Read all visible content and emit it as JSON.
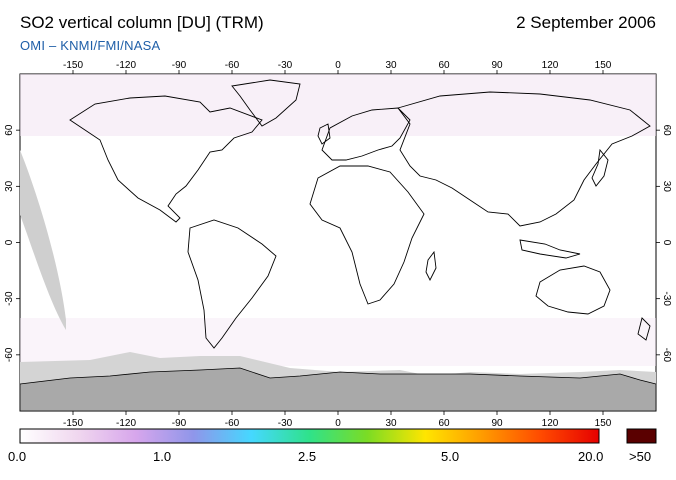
{
  "header": {
    "title": "SO2 vertical column [DU] (TRM)",
    "date": "2 September 2006",
    "credit": "OMI  –  KNMI/FMI/NASA"
  },
  "map": {
    "lon_ticks": [
      "-150",
      "-120",
      "-90",
      "-60",
      "-30",
      "0",
      "30",
      "60",
      "90",
      "120",
      "150"
    ],
    "lat_ticks": [
      "60",
      "30",
      "0",
      "-30",
      "-60"
    ],
    "lon_range": [
      -180,
      180
    ],
    "lat_range": [
      -90,
      90
    ],
    "no_data_color": "#cfcfcf",
    "land_ice_color": "#a9a9a9"
  },
  "colorbar": {
    "labels": [
      "0.0",
      "1.0",
      "2.5",
      "5.0",
      "20.0",
      ">50"
    ],
    "stops": [
      "#ffffff",
      "#f0d7ef",
      "#d7a6ec",
      "#8f96ea",
      "#45d8ff",
      "#2fe28a",
      "#7bdc24",
      "#ffe500",
      "#ff9a00",
      "#ff4a00",
      "#e60000"
    ],
    "overflow_color": "#5a0000"
  }
}
